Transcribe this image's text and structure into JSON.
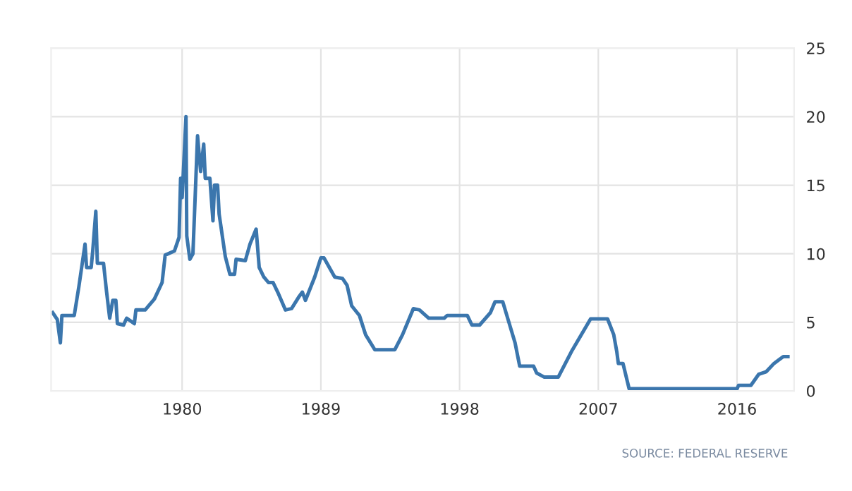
{
  "chart_data": {
    "type": "line",
    "x": [
      1971.6,
      1971.9,
      1972.1,
      1972.2,
      1973.0,
      1973.3,
      1973.7,
      1973.8,
      1974.1,
      1974.2,
      1974.4,
      1974.5,
      1974.9,
      1975.1,
      1975.3,
      1975.5,
      1975.7,
      1975.8,
      1976.2,
      1976.4,
      1976.9,
      1977.0,
      1977.6,
      1978.2,
      1978.7,
      1978.9,
      1979.5,
      1979.8,
      1979.9,
      1980.0,
      1980.25,
      1980.3,
      1980.5,
      1980.7,
      1981.0,
      1981.2,
      1981.4,
      1981.5,
      1981.8,
      1982.0,
      1982.1,
      1982.3,
      1982.4,
      1982.8,
      1983.1,
      1983.4,
      1983.5,
      1984.1,
      1984.4,
      1984.8,
      1985.0,
      1985.3,
      1985.6,
      1985.9,
      1986.2,
      1986.7,
      1987.1,
      1987.6,
      1987.8,
      1988.0,
      1988.6,
      1989.0,
      1989.2,
      1989.9,
      1990.4,
      1990.7,
      1991.0,
      1991.5,
      1991.9,
      1992.5,
      1993.8,
      1994.3,
      1995.0,
      1995.4,
      1996.0,
      1997.0,
      1997.2,
      1998.5,
      1998.8,
      1999.3,
      2000.0,
      2000.3,
      2000.8,
      2001.2,
      2001.6,
      2001.9,
      2002.8,
      2003.0,
      2003.5,
      2004.4,
      2005.3,
      2006.5,
      2007.6,
      2008.0,
      2008.2,
      2008.3,
      2008.6,
      2009.0,
      2016.0,
      2016.1,
      2016.9,
      2017.4,
      2017.9,
      2018.4,
      2019.0,
      2019.3
    ],
    "series": [
      {
        "color": "#3b76ad",
        "values": [
          5.7,
          5.2,
          3.5,
          5.5,
          5.5,
          7.6,
          10.7,
          9.0,
          9.0,
          10.2,
          13.1,
          9.3,
          9.3,
          7.2,
          5.3,
          6.6,
          6.6,
          4.9,
          4.8,
          5.3,
          4.9,
          5.9,
          5.9,
          6.7,
          7.9,
          9.9,
          10.2,
          11.2,
          15.5,
          14.1,
          20.0,
          11.3,
          9.6,
          10.0,
          18.6,
          16.0,
          18.0,
          15.5,
          15.5,
          12.4,
          15.0,
          15.0,
          12.9,
          9.8,
          8.5,
          8.5,
          9.6,
          9.5,
          10.7,
          11.8,
          9.0,
          8.3,
          7.9,
          7.9,
          7.2,
          5.9,
          6.0,
          6.9,
          7.2,
          6.6,
          8.3,
          9.7,
          9.7,
          8.3,
          8.2,
          7.7,
          6.2,
          5.5,
          4.1,
          3.0,
          3.0,
          4.1,
          6.0,
          5.9,
          5.3,
          5.3,
          5.5,
          5.5,
          4.8,
          4.8,
          5.7,
          6.5,
          6.5,
          5.0,
          3.5,
          1.8,
          1.8,
          1.3,
          1.0,
          1.0,
          2.95,
          5.25,
          5.25,
          4.1,
          2.85,
          2.0,
          2.0,
          0.15,
          0.15,
          0.4,
          0.4,
          1.2,
          1.4,
          2.0,
          2.5,
          2.5
        ]
      }
    ],
    "xlim": [
      1971.5,
      2019.7
    ],
    "xticks": [
      1980,
      1989,
      1998,
      2007,
      2016
    ],
    "ylim": [
      0,
      25
    ],
    "yticks": [
      0,
      5,
      10,
      15,
      20,
      25
    ],
    "grid": true,
    "marker": "none",
    "line_style": "solid",
    "annotations": [
      "SOURCE: FEDERAL RESERVE"
    ]
  }
}
